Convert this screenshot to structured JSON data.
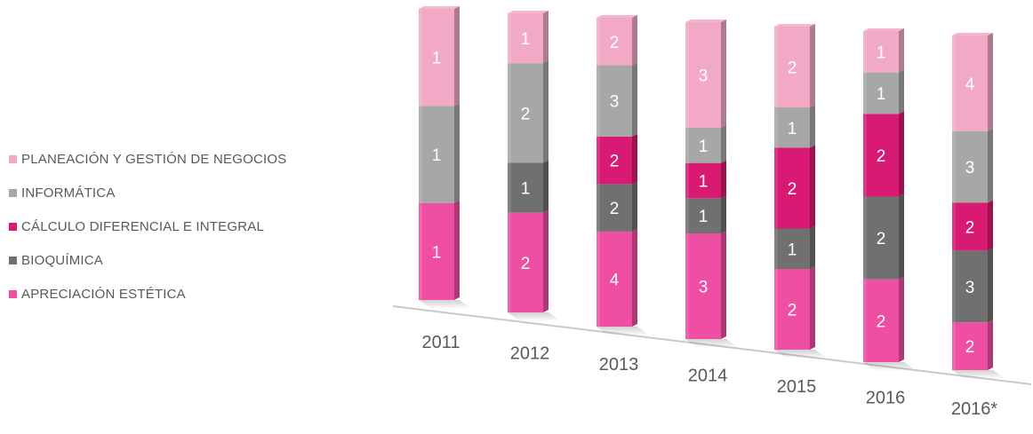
{
  "chart_data": {
    "type": "bar",
    "stacked": true,
    "categories": [
      "2011",
      "2012",
      "2013",
      "2014",
      "2015",
      "2016",
      "2016*"
    ],
    "series": [
      {
        "name": "APRECIACIÓN ESTÉTICA",
        "color": "#ee4fa3",
        "values": [
          1,
          2,
          4,
          3,
          2,
          2,
          2
        ]
      },
      {
        "name": "BIOQUÍMICA",
        "color": "#707070",
        "values": [
          0,
          1,
          2,
          1,
          1,
          2,
          3
        ]
      },
      {
        "name": "CÁLCULO DIFERENCIAL E INTEGRAL",
        "color": "#d81a72",
        "values": [
          0,
          0,
          2,
          1,
          2,
          2,
          2
        ]
      },
      {
        "name": "INFORMÁTICA",
        "color": "#a7a7a7",
        "values": [
          1,
          2,
          3,
          1,
          1,
          1,
          3
        ]
      },
      {
        "name": "PLANEACIÓN Y GESTIÓN DE NEGOCIOS",
        "color": "#f1a9c6",
        "values": [
          1,
          1,
          2,
          3,
          2,
          1,
          4
        ]
      }
    ],
    "legend_position": "left",
    "grid": false
  }
}
